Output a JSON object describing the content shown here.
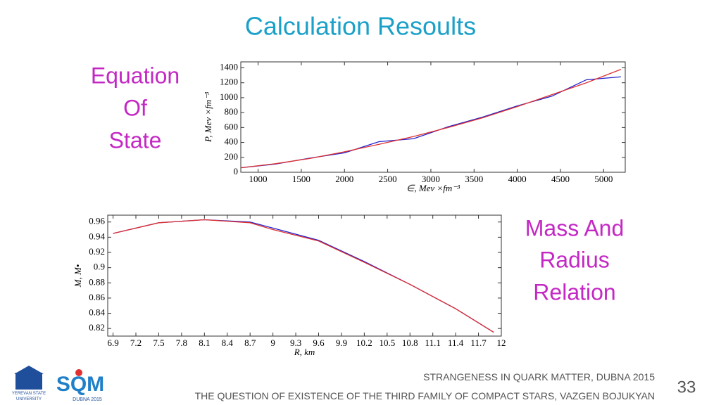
{
  "slide": {
    "title": "Calculation Resoults",
    "left_label": [
      "Equation",
      "Of",
      "State"
    ],
    "right_label": [
      "Mass And",
      "Radius",
      "Relation"
    ],
    "footer": [
      "STRANGENESS IN QUARK MATTER,  DUBNA 2015",
      "THE QUESTION OF EXISTENCE OF THE THIRD FAMILY OF COMPACT STARS, VAZGEN BOJUKYAN"
    ],
    "page_number": "33",
    "logos": [
      "YEREVAN STATE",
      "UNIVERSITY",
      "SQM",
      "DUBNA 2015"
    ]
  },
  "chart_data": [
    {
      "type": "line",
      "xlabel": "∈, Mev ×fm⁻³",
      "ylabel": "P, Mev ×fm⁻³",
      "x": [
        800,
        1200,
        1600,
        2000,
        2400,
        2800,
        3200,
        3600,
        4000,
        4400,
        4800,
        5200
      ],
      "series": [
        {
          "color": "#2222cc",
          "values": [
            60,
            110,
            190,
            260,
            410,
            450,
            610,
            740,
            890,
            1020,
            1240,
            1280
          ]
        },
        {
          "color": "#e03030",
          "values": [
            60,
            115,
            185,
            275,
            375,
            480,
            600,
            730,
            880,
            1040,
            1200,
            1380
          ]
        }
      ],
      "xlim": [
        800,
        5250
      ],
      "ylim": [
        0,
        1480
      ],
      "xticks": [
        1000,
        1500,
        2000,
        2500,
        3000,
        3500,
        4000,
        4500,
        5000
      ],
      "yticks": [
        0,
        200,
        400,
        600,
        800,
        1000,
        1200,
        1400
      ]
    },
    {
      "type": "line",
      "xlabel": "R, km",
      "ylabel": "M, M•",
      "x": [
        6.9,
        7.5,
        8.1,
        8.7,
        9.0,
        9.6,
        10.2,
        10.8,
        11.4,
        11.9
      ],
      "series": [
        {
          "color": "#2222cc",
          "values": [
            0.945,
            0.959,
            0.963,
            0.96,
            0.952,
            0.936,
            0.908,
            0.878,
            0.846,
            0.815
          ]
        },
        {
          "color": "#e03030",
          "values": [
            0.945,
            0.959,
            0.963,
            0.959,
            0.95,
            0.935,
            0.907,
            0.878,
            0.846,
            0.815
          ]
        }
      ],
      "xlim": [
        6.83,
        12
      ],
      "ylim": [
        0.81,
        0.969
      ],
      "xticks": [
        6.9,
        7.2,
        7.5,
        7.8,
        8.1,
        8.4,
        8.7,
        9,
        9.3,
        9.6,
        9.9,
        10.2,
        10.5,
        10.8,
        11.1,
        11.4,
        11.7,
        12
      ],
      "yticks": [
        0.82,
        0.84,
        0.86,
        0.88,
        0.9,
        0.92,
        0.94,
        0.96
      ]
    }
  ]
}
